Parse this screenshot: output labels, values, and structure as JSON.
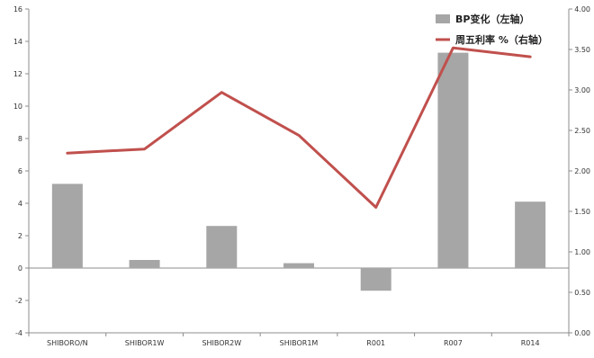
{
  "chart_data": {
    "type": "bar+line",
    "categories": [
      "SHIBORO/N",
      "SHIBOR1W",
      "SHIBOR2W",
      "SHIBOR1M",
      "R001",
      "R007",
      "R014"
    ],
    "series": [
      {
        "name": "BP变化（左轴）",
        "type": "bar",
        "axis": "left",
        "color": "#a6a6a6",
        "values": [
          5.2,
          0.5,
          2.6,
          0.3,
          -1.4,
          13.3,
          4.1
        ]
      },
      {
        "name": "周五利率 %（右轴）",
        "type": "line",
        "axis": "right",
        "color": "#c0504d",
        "values": [
          2.22,
          2.27,
          2.97,
          2.44,
          1.55,
          3.52,
          3.41
        ]
      }
    ],
    "y_left": {
      "min": -4,
      "max": 16,
      "ticks": [
        "-4",
        "-2",
        "0",
        "2",
        "4",
        "6",
        "8",
        "10",
        "12",
        "14",
        "16"
      ]
    },
    "y_right": {
      "min": 0,
      "max": 4,
      "ticks": [
        "0.00",
        "0.50",
        "1.00",
        "1.50",
        "2.00",
        "2.50",
        "3.00",
        "3.50",
        "4.00"
      ]
    },
    "legend_position": "top-right",
    "grid": false
  }
}
